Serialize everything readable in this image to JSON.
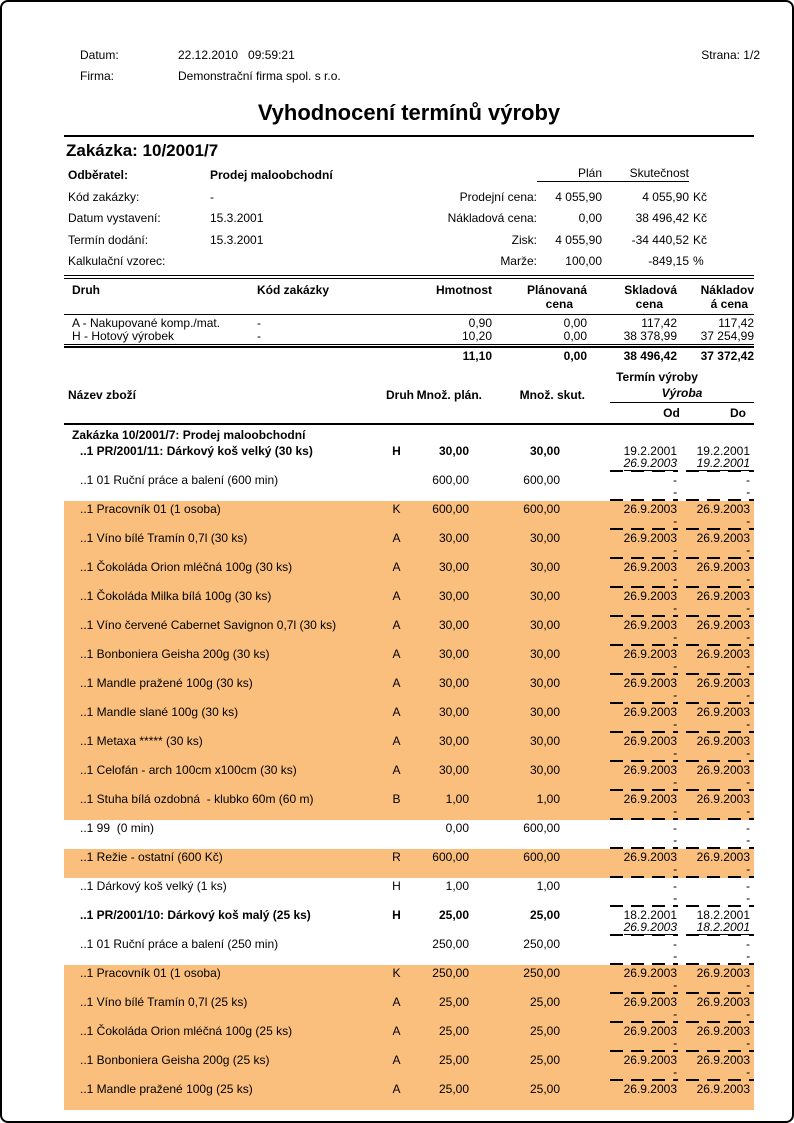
{
  "report_header": {
    "datum_label": "Datum:",
    "datum_value": "22.12.2010   09:59:21",
    "firma_label": "Firma:",
    "firma_value": "Demonstrační firma spol. s r.o.",
    "strana": "Strana: 1/2"
  },
  "title": "Vyhodnocení termínů výroby",
  "order": {
    "heading": "Zakázka: 10/2001/7",
    "fields": [
      {
        "label": "Odběratel:",
        "value": "Prodej maloobchodní"
      },
      {
        "label": "Kód zakázky:",
        "value": "-"
      },
      {
        "label": "Datum vystavení:",
        "value": "15.3.2001"
      },
      {
        "label": "Termín dodání:",
        "value": "15.3.2001"
      },
      {
        "label": "Kalkulační vzorec:",
        "value": ""
      }
    ],
    "price_summary": {
      "plan_header": "Plán",
      "skutecnost_header": "Skutečnost",
      "rows": [
        {
          "label": "Prodejní cena:",
          "plan": "4 055,90",
          "skutecnost": "4 055,90",
          "unit": "Kč"
        },
        {
          "label": "Nákladová cena:",
          "plan": "0,00",
          "skutecnost": "38 496,42",
          "unit": "Kč"
        },
        {
          "label": "Zisk:",
          "plan": "4 055,90",
          "skutecnost": "-34 440,52",
          "unit": "Kč"
        },
        {
          "label": "Marže:",
          "plan": "100,00",
          "skutecnost": "-849,15",
          "unit": "%"
        }
      ]
    }
  },
  "type_summary": {
    "headers": {
      "druh": "Druh",
      "kod": "Kód zakázky",
      "hmotnost": "Hmotnost",
      "planovana_l1": "Plánovaná",
      "planovana_l2": "cena",
      "skladova_l1": "Skladová",
      "skladova_l2": "cena",
      "nakladova_l1": "Nákladov",
      "nakladova_l2": "á cena"
    },
    "rows": [
      {
        "druh": "A - Nakupované komp./mat.",
        "kod": "-",
        "hmotnost": "0,90",
        "planovana": "0,00",
        "skladova": "117,42",
        "nakladova": "117,42"
      },
      {
        "druh": "H - Hotový výrobek",
        "kod": "-",
        "hmotnost": "10,20",
        "planovana": "0,00",
        "skladova": "38 378,99",
        "nakladova": "37 254,99"
      }
    ],
    "totals": {
      "hmotnost": "11,10",
      "planovana": "0,00",
      "skladova": "38 496,42",
      "nakladova": "37 372,42"
    }
  },
  "production_table": {
    "headers": {
      "nazev": "Název zboží",
      "druh": "Druh",
      "mnoz_plan": "Množ. plán.",
      "mnoz_skut": "Množ. skut.",
      "termin": "Termín výroby",
      "vyroba": "Výroba",
      "od": "Od",
      "do": "Do"
    },
    "highlight_color": "#FABE7D",
    "rows": [
      {
        "group": true,
        "name": "Zakázka 10/2001/7: Prodej maloobchodní"
      },
      {
        "name": "..1 PR/2001/11: Dárkový koš velký (30 ks)",
        "druh": "H",
        "plan": "30,00",
        "skut": "30,00",
        "od1": "19.2.2001",
        "do1": "19.2.2001",
        "od2": "26.9.2003",
        "do2": "19.2.2001",
        "bold": true,
        "ul2": true
      },
      {
        "name": "..1 01 Ruční práce a balení (600 min)",
        "druh": "",
        "plan": "600,00",
        "skut": "600,00",
        "od1": "-",
        "do1": "-",
        "od2": "-",
        "do2": "-"
      },
      {
        "name": "..1 Pracovník 01 (1 osoba)",
        "druh": "K",
        "plan": "600,00",
        "skut": "600,00",
        "od1": "26.9.2003",
        "do1": "26.9.2003",
        "od2": "-",
        "do2": "-",
        "hl": true
      },
      {
        "name": "..1 Víno bílé Tramín 0,7l (30 ks)",
        "druh": "A",
        "plan": "30,00",
        "skut": "30,00",
        "od1": "26.9.2003",
        "do1": "26.9.2003",
        "od2": "-",
        "do2": "-",
        "hl": true
      },
      {
        "name": "..1 Čokoláda Orion mléčná 100g (30 ks)",
        "druh": "A",
        "plan": "30,00",
        "skut": "30,00",
        "od1": "26.9.2003",
        "do1": "26.9.2003",
        "od2": "-",
        "do2": "-",
        "hl": true
      },
      {
        "name": "..1 Čokoláda Milka bílá 100g (30 ks)",
        "druh": "A",
        "plan": "30,00",
        "skut": "30,00",
        "od1": "26.9.2003",
        "do1": "26.9.2003",
        "od2": "-",
        "do2": "-",
        "hl": true
      },
      {
        "name": "..1 Víno červené Cabernet Savignon 0,7l (30 ks)",
        "druh": "A",
        "plan": "30,00",
        "skut": "30,00",
        "od1": "26.9.2003",
        "do1": "26.9.2003",
        "od2": "-",
        "do2": "-",
        "hl": true
      },
      {
        "name": "..1 Bonboniera Geisha 200g (30 ks)",
        "druh": "A",
        "plan": "30,00",
        "skut": "30,00",
        "od1": "26.9.2003",
        "do1": "26.9.2003",
        "od2": "-",
        "do2": "-",
        "hl": true
      },
      {
        "name": "..1 Mandle pražené 100g (30 ks)",
        "druh": "A",
        "plan": "30,00",
        "skut": "30,00",
        "od1": "26.9.2003",
        "do1": "26.9.2003",
        "od2": "-",
        "do2": "-",
        "hl": true
      },
      {
        "name": "..1 Mandle slané 100g (30 ks)",
        "druh": "A",
        "plan": "30,00",
        "skut": "30,00",
        "od1": "26.9.2003",
        "do1": "26.9.2003",
        "od2": "-",
        "do2": "-",
        "hl": true
      },
      {
        "name": "..1 Metaxa ***** (30 ks)",
        "druh": "A",
        "plan": "30,00",
        "skut": "30,00",
        "od1": "26.9.2003",
        "do1": "26.9.2003",
        "od2": "-",
        "do2": "-",
        "hl": true
      },
      {
        "name": "..1 Celofán - arch 100cm x100cm (30 ks)",
        "druh": "A",
        "plan": "30,00",
        "skut": "30,00",
        "od1": "26.9.2003",
        "do1": "26.9.2003",
        "od2": "-",
        "do2": "-",
        "hl": true
      },
      {
        "name": "..1 Stuha bílá ozdobná  - klubko 60m (60 m)",
        "druh": "B",
        "plan": "1,00",
        "skut": "1,00",
        "od1": "26.9.2003",
        "do1": "26.9.2003",
        "od2": "-",
        "do2": "-",
        "hl": true
      },
      {
        "name": "..1 99  (0 min)",
        "druh": "",
        "plan": "0,00",
        "skut": "600,00",
        "od1": "-",
        "do1": "-",
        "od2": "-",
        "do2": "-"
      },
      {
        "name": "..1 Režie - ostatní (600 Kč)",
        "druh": "R",
        "plan": "600,00",
        "skut": "600,00",
        "od1": "26.9.2003",
        "do1": "26.9.2003",
        "od2": "-",
        "do2": "-",
        "hl": true
      },
      {
        "name": "..1 Dárkový koš velký (1 ks)",
        "druh": "H",
        "plan": "1,00",
        "skut": "1,00",
        "od1": "-",
        "do1": "-",
        "od2": "-",
        "do2": "-"
      },
      {
        "name": "..1 PR/2001/10: Dárkový koš malý (25 ks)",
        "druh": "H",
        "plan": "25,00",
        "skut": "25,00",
        "od1": "18.2.2001",
        "do1": "18.2.2001",
        "od2": "26.9.2003",
        "do2": "18.2.2001",
        "bold": true,
        "ul2": true
      },
      {
        "name": "..1 01 Ruční práce a balení (250 min)",
        "druh": "",
        "plan": "250,00",
        "skut": "250,00",
        "od1": "-",
        "do1": "-",
        "od2": "-",
        "do2": "-"
      },
      {
        "name": "..1 Pracovník 01 (1 osoba)",
        "druh": "K",
        "plan": "250,00",
        "skut": "250,00",
        "od1": "26.9.2003",
        "do1": "26.9.2003",
        "od2": "-",
        "do2": "-",
        "hl": true
      },
      {
        "name": "..1 Víno bílé Tramín 0,7l (25 ks)",
        "druh": "A",
        "plan": "25,00",
        "skut": "25,00",
        "od1": "26.9.2003",
        "do1": "26.9.2003",
        "od2": "-",
        "do2": "-",
        "hl": true
      },
      {
        "name": "..1 Čokoláda Orion mléčná 100g (25 ks)",
        "druh": "A",
        "plan": "25,00",
        "skut": "25,00",
        "od1": "26.9.2003",
        "do1": "26.9.2003",
        "od2": "-",
        "do2": "-",
        "hl": true
      },
      {
        "name": "..1 Bonboniera Geisha 200g (25 ks)",
        "druh": "A",
        "plan": "25,00",
        "skut": "25,00",
        "od1": "26.9.2003",
        "do1": "26.9.2003",
        "od2": "-",
        "do2": "-",
        "hl": true
      },
      {
        "name": "..1 Mandle pražené 100g (25 ks)",
        "druh": "A",
        "plan": "25,00",
        "skut": "25,00",
        "od1": "26.9.2003",
        "do1": "26.9.2003",
        "od2": "",
        "do2": "",
        "hl": true,
        "nodash": true
      }
    ]
  }
}
